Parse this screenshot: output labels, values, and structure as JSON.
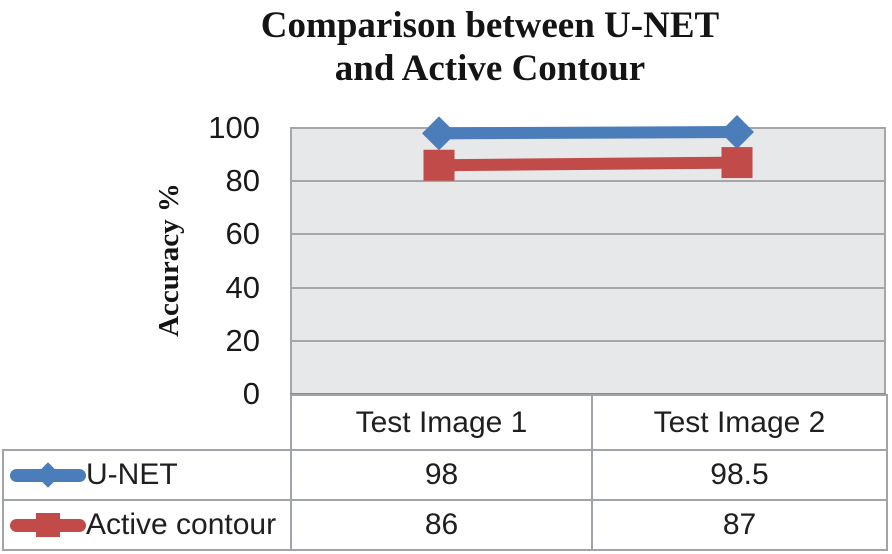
{
  "title": {
    "lines": [
      "Comparison between U-NET",
      "and Active Contour"
    ]
  },
  "y_axis": {
    "label": "Accuracy %",
    "ticks": [
      "100",
      "80",
      "60",
      "40",
      "20",
      "0"
    ]
  },
  "chart_data": {
    "type": "line",
    "title": "Comparison between U-NET and Active Contour",
    "ylabel": "Accuracy %",
    "categories": [
      "Test Image 1",
      "Test Image 2"
    ],
    "series": [
      {
        "name": "U-NET",
        "marker": "diamond",
        "color": "#4b7dbb",
        "values": [
          98,
          98.5
        ]
      },
      {
        "name": "Active contour",
        "marker": "square",
        "color": "#c04b48",
        "values": [
          86,
          87
        ]
      }
    ],
    "ylim": [
      0,
      100
    ],
    "y_tick_step": 20,
    "grid": true,
    "plot_background": "#e7e8ea",
    "gridline_color": "#a6a6a6",
    "legend_position": "table-left"
  },
  "table": {
    "col_headers": [
      "Test Image 1",
      "Test Image 2"
    ],
    "rows": [
      {
        "label": "U-NET",
        "values": [
          "98",
          "98.5"
        ]
      },
      {
        "label": "Active contour",
        "values": [
          "86",
          "87"
        ]
      }
    ]
  }
}
